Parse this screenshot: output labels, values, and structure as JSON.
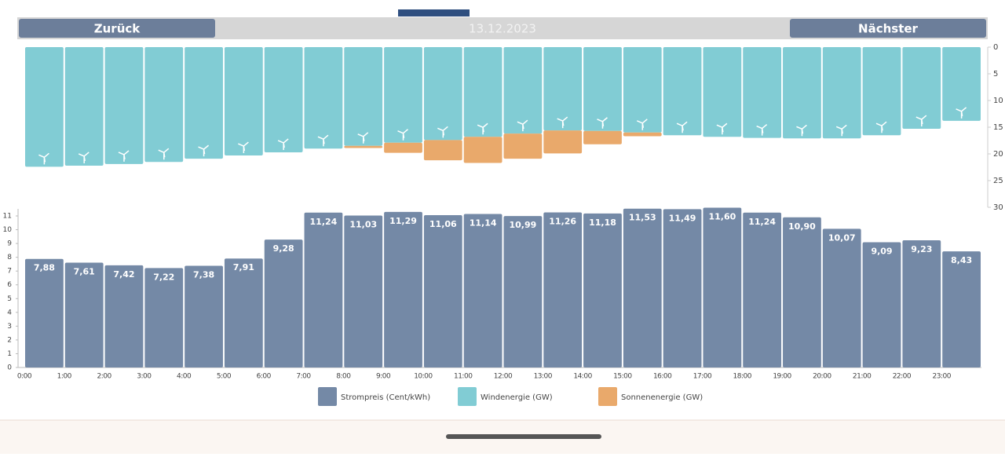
{
  "header": {
    "back": "Zurück",
    "date": "13.12.2023",
    "next": "Nächster"
  },
  "chart_data": [
    {
      "type": "stacked-bar",
      "inverted": true,
      "categories": [
        "0:00",
        "1:00",
        "2:00",
        "3:00",
        "4:00",
        "5:00",
        "6:00",
        "7:00",
        "8:00",
        "9:00",
        "10:00",
        "11:00",
        "12:00",
        "13:00",
        "14:00",
        "15:00",
        "16:00",
        "17:00",
        "18:00",
        "19:00",
        "20:00",
        "21:00",
        "22:00",
        "23:00"
      ],
      "series": [
        {
          "name": "Windenergie (GW)",
          "color": "#81ccd4",
          "values": [
            22.4,
            22.2,
            21.9,
            21.5,
            20.9,
            20.3,
            19.7,
            19.0,
            18.5,
            17.9,
            17.4,
            16.8,
            16.2,
            15.6,
            15.7,
            16.0,
            16.5,
            16.8,
            17.0,
            17.1,
            17.1,
            16.5,
            15.3,
            13.8
          ]
        },
        {
          "name": "Sonnenenergie (GW)",
          "color": "#e9a96b",
          "values": [
            0,
            0,
            0,
            0,
            0,
            0,
            0,
            0,
            0.4,
            1.9,
            3.8,
            4.9,
            4.7,
            4.3,
            2.5,
            0.7,
            0,
            0,
            0,
            0,
            0,
            0,
            0,
            0
          ]
        }
      ],
      "ylim": [
        0,
        30
      ],
      "yticks": [
        0,
        5,
        10,
        15,
        20,
        25,
        30
      ]
    },
    {
      "type": "bar",
      "categories": [
        "0:00",
        "1:00",
        "2:00",
        "3:00",
        "4:00",
        "5:00",
        "6:00",
        "7:00",
        "8:00",
        "9:00",
        "10:00",
        "11:00",
        "12:00",
        "13:00",
        "14:00",
        "15:00",
        "16:00",
        "17:00",
        "18:00",
        "19:00",
        "20:00",
        "21:00",
        "22:00",
        "23:00"
      ],
      "series": [
        {
          "name": "Strompreis (Cent/kWh)",
          "color": "#7489a6",
          "values": [
            7.88,
            7.61,
            7.42,
            7.22,
            7.38,
            7.91,
            9.28,
            11.24,
            11.03,
            11.29,
            11.06,
            11.14,
            10.99,
            11.26,
            11.18,
            11.53,
            11.49,
            11.6,
            11.24,
            10.9,
            10.07,
            9.09,
            9.23,
            8.43
          ],
          "value_labels": [
            "7,88",
            "7,61",
            "7,42",
            "7,22",
            "7,38",
            "7,91",
            "9,28",
            "11,24",
            "11,03",
            "11,29",
            "11,06",
            "11,14",
            "10,99",
            "11,26",
            "11,18",
            "11,53",
            "11,49",
            "11,60",
            "11,24",
            "10,90",
            "10,07",
            "9,09",
            "9,23",
            "8,43"
          ]
        }
      ],
      "ylim": [
        0,
        11
      ],
      "yticks": [
        0,
        1,
        2,
        3,
        4,
        5,
        6,
        7,
        8,
        9,
        10,
        11
      ]
    }
  ]
}
